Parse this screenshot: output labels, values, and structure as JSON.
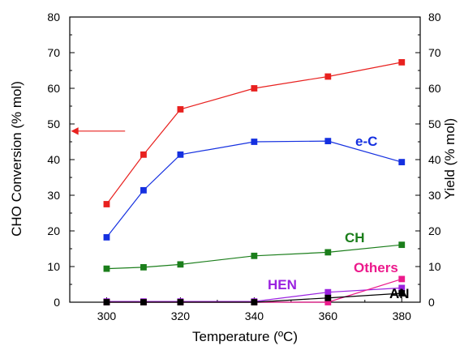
{
  "chart_data": {
    "type": "line",
    "xlabel": "Temperature (ºC)",
    "ylabel_left": "CHO Conversion (% mol)",
    "ylabel_right": "Yield (% mol)",
    "xlim": [
      290,
      385
    ],
    "ylim": [
      0,
      80
    ],
    "x_ticks": [
      "300",
      "320",
      "340",
      "360",
      "380"
    ],
    "y_ticks": [
      "0",
      "10",
      "20",
      "30",
      "40",
      "50",
      "60",
      "70",
      "80"
    ],
    "grid": false,
    "series": [
      {
        "name": "",
        "axis": "left",
        "color": "#e8211f",
        "x": [
          300,
          310,
          320,
          340,
          360,
          380
        ],
        "y": [
          27.5,
          41.4,
          54.1,
          60.0,
          63.3,
          67.3
        ]
      },
      {
        "name": "e-C",
        "axis": "right",
        "color": "#1530e0",
        "x": [
          300,
          310,
          320,
          340,
          360,
          380
        ],
        "y": [
          18.2,
          31.4,
          41.4,
          45.0,
          45.2,
          39.3
        ]
      },
      {
        "name": "CH",
        "axis": "right",
        "color": "#1b7e1b",
        "x": [
          300,
          310,
          320,
          340,
          360,
          380
        ],
        "y": [
          9.4,
          9.8,
          10.6,
          13.0,
          14.0,
          16.1
        ]
      },
      {
        "name": "HEN",
        "axis": "right",
        "color": "#9a22e0",
        "x": [
          300,
          310,
          320,
          340,
          360,
          380
        ],
        "y": [
          0.2,
          0.2,
          0.2,
          0.2,
          2.8,
          4.0
        ]
      },
      {
        "name": "Others",
        "axis": "right",
        "color": "#ec1a8c",
        "x": [
          300,
          310,
          320,
          340,
          360,
          380
        ],
        "y": [
          0.0,
          0.0,
          0.0,
          0.0,
          0.0,
          6.5
        ]
      },
      {
        "name": "AN",
        "axis": "right",
        "color": "#000000",
        "x": [
          300,
          310,
          320,
          340,
          360,
          380
        ],
        "y": [
          0.0,
          0.0,
          0.0,
          0.0,
          1.2,
          2.5
        ]
      }
    ],
    "annotations": [
      {
        "type": "arrow",
        "color": "#e8211f",
        "points_to": "left-axis",
        "x_from": 305,
        "x_to": 290.5,
        "y": 48
      }
    ]
  }
}
